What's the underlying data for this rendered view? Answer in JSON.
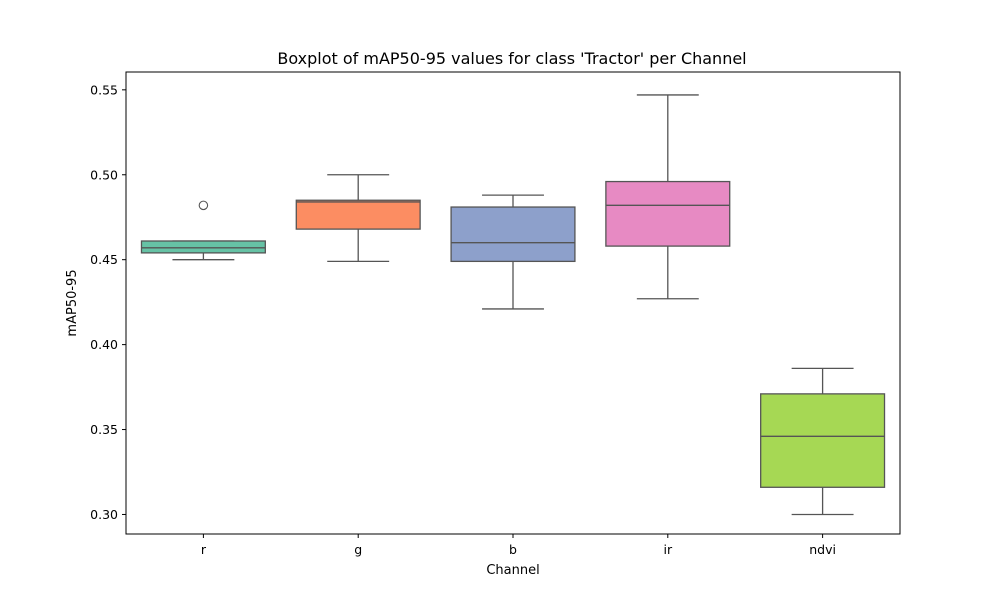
{
  "chart_data": {
    "type": "boxplot",
    "title": "Boxplot of mAP50-95 values for class 'Tractor' per Channel",
    "xlabel": "Channel",
    "ylabel": "mAP50-95",
    "ylim": [
      0.2885,
      0.5605
    ],
    "yticks": [
      0.3,
      0.35,
      0.4,
      0.45,
      0.5,
      0.55
    ],
    "ytick_labels": [
      "0.30",
      "0.35",
      "0.40",
      "0.45",
      "0.50",
      "0.55"
    ],
    "grid": false,
    "legend": "none",
    "categories": [
      "r",
      "g",
      "b",
      "ir",
      "ndvi"
    ],
    "boxes": [
      {
        "name": "r",
        "color": "#66c2a5",
        "whisker_low": 0.45,
        "q1": 0.454,
        "median": 0.457,
        "q3": 0.461,
        "whisker_high": 0.461,
        "outliers": [
          0.482
        ]
      },
      {
        "name": "g",
        "color": "#fc8d62",
        "whisker_low": 0.449,
        "q1": 0.468,
        "median": 0.484,
        "q3": 0.485,
        "whisker_high": 0.5,
        "outliers": []
      },
      {
        "name": "b",
        "color": "#8da0cb",
        "whisker_low": 0.421,
        "q1": 0.449,
        "median": 0.46,
        "q3": 0.481,
        "whisker_high": 0.488,
        "outliers": []
      },
      {
        "name": "ir",
        "color": "#e78ac3",
        "whisker_low": 0.427,
        "q1": 0.458,
        "median": 0.482,
        "q3": 0.496,
        "whisker_high": 0.547,
        "outliers": []
      },
      {
        "name": "ndvi",
        "color": "#a6d854",
        "whisker_low": 0.3,
        "q1": 0.316,
        "median": 0.346,
        "q3": 0.371,
        "whisker_high": 0.386,
        "outliers": []
      }
    ]
  }
}
